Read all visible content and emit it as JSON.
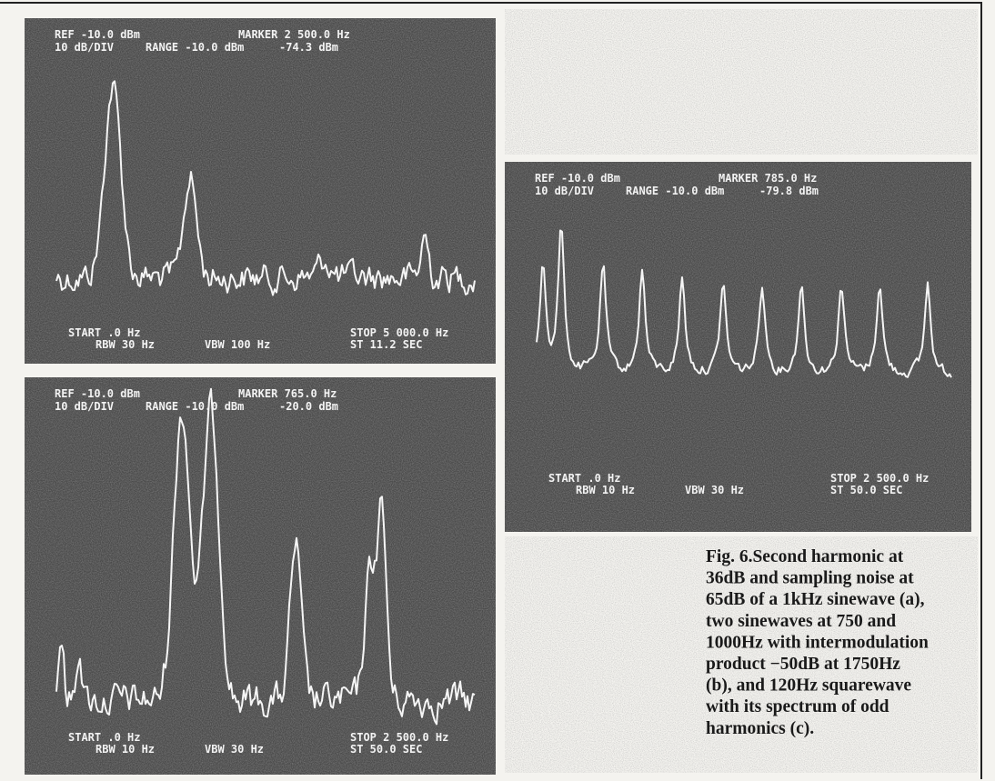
{
  "panels": [
    {
      "ref": "REF -10.0 dBm",
      "marker": "MARKER 2 500.0 Hz",
      "scale": "10 dB/DIV",
      "range": "RANGE -10.0 dBm",
      "marker_level": "-74.3 dBm",
      "start": "START .0 Hz",
      "stop": "STOP 5 000.0 Hz",
      "rbw": "RBW 30 Hz",
      "vbw": "VBW 100 Hz",
      "sweep": "ST 11.2 SEC"
    },
    {
      "ref": "REF -10.0 dBm",
      "marker": "MARKER 765.0 Hz",
      "scale": "10 dB/DIV",
      "range": "RANGE -10.0 dBm",
      "marker_level": "-20.0 dBm",
      "start": "START .0 Hz",
      "stop": "STOP 2 500.0 Hz",
      "rbw": "RBW 10 Hz",
      "vbw": "VBW 30 Hz",
      "sweep": "ST 50.0 SEC"
    },
    {
      "ref": "REF -10.0 dBm",
      "marker": "MARKER 785.0 Hz",
      "scale": "10 dB/DIV",
      "range": "RANGE -10.0 dBm",
      "marker_level": "-79.8 dBm",
      "start": "START .0 Hz",
      "stop": "STOP 2 500.0 Hz",
      "rbw": "RBW 10 Hz",
      "vbw": "VBW 30 Hz",
      "sweep": "ST 50.0 SEC"
    }
  ],
  "caption": [
    "Fig. 6.Second harmonic at",
    "36dB and sampling noise at",
    "65dB of a 1kHz sinewave (a),",
    "two sinewaves at 750 and",
    "1000Hz with intermodulation",
    "product −50dB at 1750Hz",
    "(b), and 120Hz squarewave",
    "with its spectrum of odd",
    "harmonics (c)."
  ]
}
